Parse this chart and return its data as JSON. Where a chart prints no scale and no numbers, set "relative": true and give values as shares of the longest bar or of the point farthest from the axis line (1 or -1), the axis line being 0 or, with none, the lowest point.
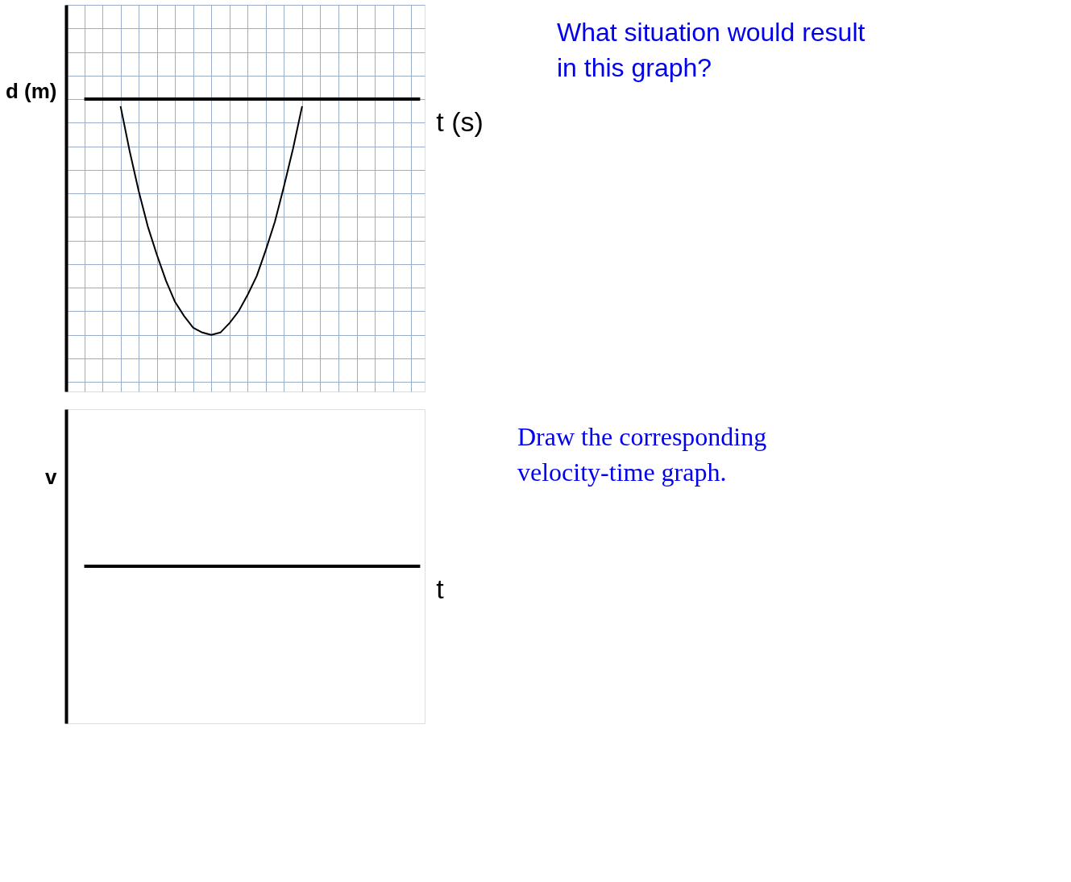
{
  "chart_data": [
    {
      "type": "line",
      "relative": true,
      "xlabel": "t (s)",
      "ylabel": "d (m)",
      "grid": true,
      "tick_labels": false,
      "annotations": [
        "What situation would result in this graph?"
      ],
      "categories": [
        null,
        null,
        null,
        null,
        null,
        null,
        null,
        null,
        null,
        null,
        null,
        null,
        null,
        null,
        null,
        null,
        null,
        null,
        null,
        null,
        null,
        null,
        null,
        null,
        null,
        null,
        null,
        null,
        null,
        null,
        null,
        null,
        null,
        null,
        null,
        null,
        null,
        null
      ],
      "series": [
        {
          "color": "#000000",
          "values": [
            null,
            null,
            null,
            null,
            -0.03,
            -0.22,
            -0.39,
            -0.54,
            -0.66,
            -0.77,
            -0.86,
            -0.92,
            -0.97,
            -0.99,
            -1.0,
            -0.99,
            -0.95,
            -0.9,
            -0.83,
            -0.75,
            -0.64,
            -0.52,
            -0.37,
            -0.21,
            -0.03,
            null,
            null,
            null,
            null,
            null,
            null,
            null,
            null,
            null,
            null,
            null,
            null,
            null
          ]
        }
      ]
    },
    {
      "type": "other",
      "xlabel": "t",
      "ylabel": "v",
      "annotations": [
        "Draw the corresponding velocity-time graph."
      ]
    }
  ]
}
